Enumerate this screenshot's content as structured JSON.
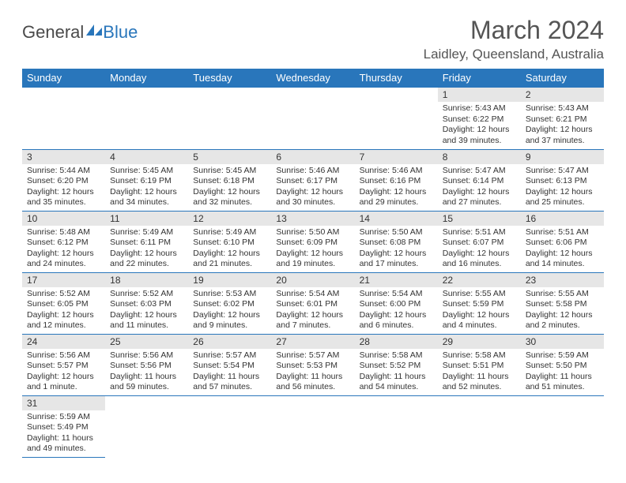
{
  "brand": {
    "part1": "General",
    "part2": "Blue"
  },
  "title": "March 2024",
  "location": "Laidley, Queensland, Australia",
  "colors": {
    "header_bg": "#2976bb",
    "header_fg": "#ffffff",
    "daynum_bg": "#e6e6e6",
    "row_border": "#2976bb"
  },
  "columns": [
    "Sunday",
    "Monday",
    "Tuesday",
    "Wednesday",
    "Thursday",
    "Friday",
    "Saturday"
  ],
  "weeks": [
    [
      null,
      null,
      null,
      null,
      null,
      {
        "n": "1",
        "sr": "5:43 AM",
        "ss": "6:22 PM",
        "dl": "12 hours and 39 minutes."
      },
      {
        "n": "2",
        "sr": "5:43 AM",
        "ss": "6:21 PM",
        "dl": "12 hours and 37 minutes."
      }
    ],
    [
      {
        "n": "3",
        "sr": "5:44 AM",
        "ss": "6:20 PM",
        "dl": "12 hours and 35 minutes."
      },
      {
        "n": "4",
        "sr": "5:45 AM",
        "ss": "6:19 PM",
        "dl": "12 hours and 34 minutes."
      },
      {
        "n": "5",
        "sr": "5:45 AM",
        "ss": "6:18 PM",
        "dl": "12 hours and 32 minutes."
      },
      {
        "n": "6",
        "sr": "5:46 AM",
        "ss": "6:17 PM",
        "dl": "12 hours and 30 minutes."
      },
      {
        "n": "7",
        "sr": "5:46 AM",
        "ss": "6:16 PM",
        "dl": "12 hours and 29 minutes."
      },
      {
        "n": "8",
        "sr": "5:47 AM",
        "ss": "6:14 PM",
        "dl": "12 hours and 27 minutes."
      },
      {
        "n": "9",
        "sr": "5:47 AM",
        "ss": "6:13 PM",
        "dl": "12 hours and 25 minutes."
      }
    ],
    [
      {
        "n": "10",
        "sr": "5:48 AM",
        "ss": "6:12 PM",
        "dl": "12 hours and 24 minutes."
      },
      {
        "n": "11",
        "sr": "5:49 AM",
        "ss": "6:11 PM",
        "dl": "12 hours and 22 minutes."
      },
      {
        "n": "12",
        "sr": "5:49 AM",
        "ss": "6:10 PM",
        "dl": "12 hours and 21 minutes."
      },
      {
        "n": "13",
        "sr": "5:50 AM",
        "ss": "6:09 PM",
        "dl": "12 hours and 19 minutes."
      },
      {
        "n": "14",
        "sr": "5:50 AM",
        "ss": "6:08 PM",
        "dl": "12 hours and 17 minutes."
      },
      {
        "n": "15",
        "sr": "5:51 AM",
        "ss": "6:07 PM",
        "dl": "12 hours and 16 minutes."
      },
      {
        "n": "16",
        "sr": "5:51 AM",
        "ss": "6:06 PM",
        "dl": "12 hours and 14 minutes."
      }
    ],
    [
      {
        "n": "17",
        "sr": "5:52 AM",
        "ss": "6:05 PM",
        "dl": "12 hours and 12 minutes."
      },
      {
        "n": "18",
        "sr": "5:52 AM",
        "ss": "6:03 PM",
        "dl": "12 hours and 11 minutes."
      },
      {
        "n": "19",
        "sr": "5:53 AM",
        "ss": "6:02 PM",
        "dl": "12 hours and 9 minutes."
      },
      {
        "n": "20",
        "sr": "5:54 AM",
        "ss": "6:01 PM",
        "dl": "12 hours and 7 minutes."
      },
      {
        "n": "21",
        "sr": "5:54 AM",
        "ss": "6:00 PM",
        "dl": "12 hours and 6 minutes."
      },
      {
        "n": "22",
        "sr": "5:55 AM",
        "ss": "5:59 PM",
        "dl": "12 hours and 4 minutes."
      },
      {
        "n": "23",
        "sr": "5:55 AM",
        "ss": "5:58 PM",
        "dl": "12 hours and 2 minutes."
      }
    ],
    [
      {
        "n": "24",
        "sr": "5:56 AM",
        "ss": "5:57 PM",
        "dl": "12 hours and 1 minute."
      },
      {
        "n": "25",
        "sr": "5:56 AM",
        "ss": "5:56 PM",
        "dl": "11 hours and 59 minutes."
      },
      {
        "n": "26",
        "sr": "5:57 AM",
        "ss": "5:54 PM",
        "dl": "11 hours and 57 minutes."
      },
      {
        "n": "27",
        "sr": "5:57 AM",
        "ss": "5:53 PM",
        "dl": "11 hours and 56 minutes."
      },
      {
        "n": "28",
        "sr": "5:58 AM",
        "ss": "5:52 PM",
        "dl": "11 hours and 54 minutes."
      },
      {
        "n": "29",
        "sr": "5:58 AM",
        "ss": "5:51 PM",
        "dl": "11 hours and 52 minutes."
      },
      {
        "n": "30",
        "sr": "5:59 AM",
        "ss": "5:50 PM",
        "dl": "11 hours and 51 minutes."
      }
    ],
    [
      {
        "n": "31",
        "sr": "5:59 AM",
        "ss": "5:49 PM",
        "dl": "11 hours and 49 minutes."
      },
      null,
      null,
      null,
      null,
      null,
      null
    ]
  ],
  "labels": {
    "sunrise": "Sunrise:",
    "sunset": "Sunset:",
    "daylight": "Daylight:"
  }
}
